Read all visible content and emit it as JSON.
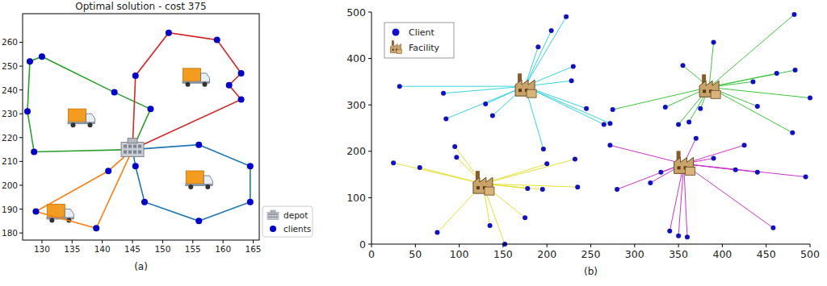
{
  "chart_data": [
    {
      "type": "route",
      "title": "Optimal solution - cost 375",
      "label": "(a)",
      "xlim": [
        126.8,
        166
      ],
      "xticks": [
        130,
        135,
        140,
        145,
        150,
        155,
        160,
        165
      ],
      "ylim": [
        177,
        272
      ],
      "yticks": [
        180,
        190,
        200,
        210,
        220,
        230,
        240,
        250,
        260
      ],
      "legend": "lower right",
      "depot": {
        "name": "depot",
        "x": 145,
        "y": 215
      },
      "clients": {
        "name": "clients",
        "color": "#0000cd"
      },
      "routes": [
        {
          "color": "#2ca02c",
          "x": [
            128.7,
            127.6,
            128,
            130,
            142,
            148
          ],
          "y": [
            214,
            231,
            252,
            254,
            239,
            232
          ]
        },
        {
          "color": "#d62728",
          "x": [
            145.5,
            151,
            159,
            163,
            161,
            163
          ],
          "y": [
            246,
            264,
            261,
            247,
            242,
            236
          ]
        },
        {
          "color": "#1f77b4",
          "x": [
            156,
            164.5,
            164.5,
            156,
            147,
            145.5
          ],
          "y": [
            217,
            208,
            193,
            185,
            193,
            208
          ]
        },
        {
          "color": "#ff7f0e",
          "x": [
            141,
            129,
            139
          ],
          "y": [
            206,
            189,
            182
          ]
        }
      ]
    },
    {
      "type": "facility",
      "label": "(b)",
      "xlim": [
        0,
        500
      ],
      "xticks": [
        0,
        50,
        100,
        150,
        200,
        250,
        300,
        350,
        400,
        450,
        500
      ],
      "ylim": [
        0,
        500
      ],
      "yticks": [
        0,
        100,
        200,
        300,
        400,
        500
      ],
      "legend": "upper left",
      "client_name": "Client",
      "facility_name": "Facility",
      "client_color": "#1010c8",
      "groups": [
        {
          "color": "#33d6e0",
          "facility": {
            "x": 175,
            "y": 340
          },
          "clients": {
            "x": [
              32,
              82,
              85,
              130,
              138,
              196,
              190,
              205,
              222,
              230,
              228,
              245,
              265,
              272
            ],
            "y": [
              340,
              325,
              270,
              302,
              277,
              205,
              425,
              460,
              490,
              383,
              352,
              292,
              258,
              260
            ]
          }
        },
        {
          "color": "#3cc83c",
          "facility": {
            "x": 385,
            "y": 338
          },
          "clients": {
            "x": [
              482,
              390,
              355,
              435,
              462,
              483,
              500,
              440,
              480,
              335,
              350,
              362,
              375,
              275
            ],
            "y": [
              495,
              435,
              385,
              350,
              368,
              375,
              315,
              297,
              240,
              295,
              258,
              263,
              292,
              290
            ]
          }
        },
        {
          "color": "#e6e030",
          "facility": {
            "x": 127,
            "y": 130
          },
          "clients": {
            "x": [
              25,
              55,
              95,
              97,
              75,
              135,
              152,
              178,
              195,
              175,
              200,
              232,
              235
            ],
            "y": [
              175,
              165,
              210,
              187,
              25,
              40,
              0,
              120,
              118,
              57,
              173,
              183,
              123
            ]
          }
        },
        {
          "color": "#cc33cc",
          "facility": {
            "x": 356,
            "y": 173
          },
          "clients": {
            "x": [
              272,
              280,
              318,
              330,
              370,
              390,
              425,
              415,
              440,
              495,
              458,
              340,
              350,
              360
            ],
            "y": [
              213,
              118,
              132,
              155,
              228,
              185,
              213,
              160,
              155,
              145,
              35,
              28,
              18,
              15
            ]
          }
        }
      ]
    }
  ]
}
